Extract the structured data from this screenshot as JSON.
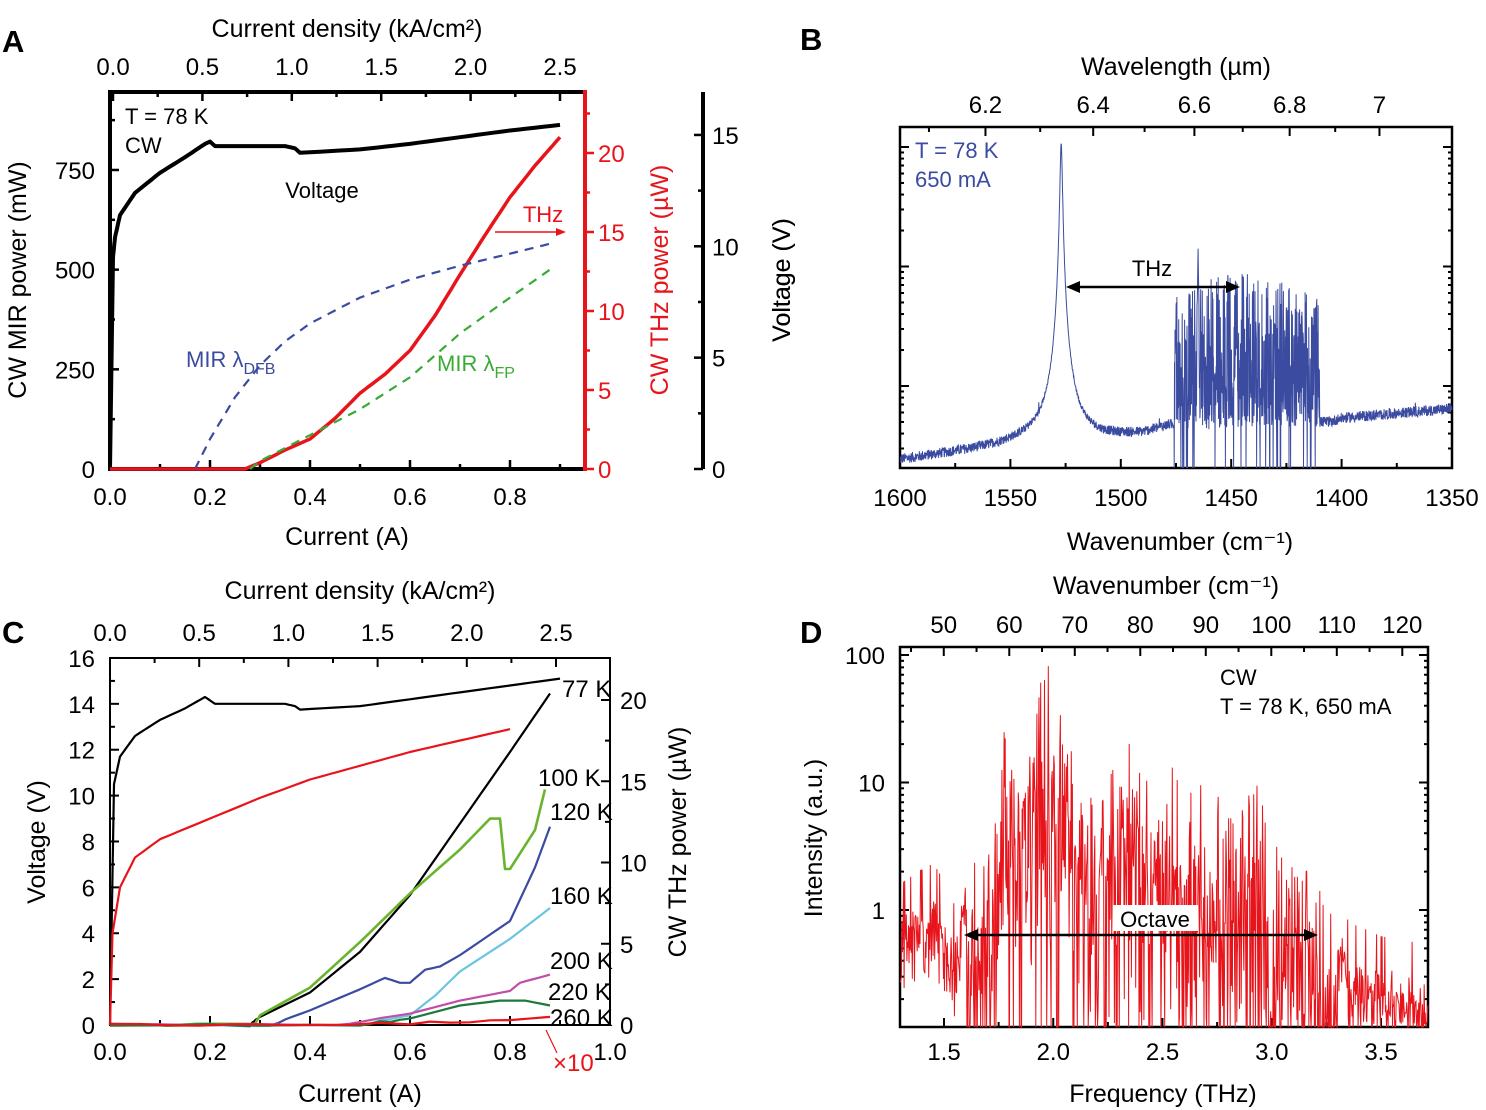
{
  "panel_labels": [
    "A",
    "B",
    "C",
    "D"
  ],
  "chart_data": [
    {
      "panel": "A",
      "type": "line",
      "xlabel": "Current (A)",
      "x2label": "Current density (kA/cm²)",
      "ylabel": "CW MIR power (mW)",
      "y2label": "CW THz power (µW)",
      "y3label": "Voltage (V)",
      "xticks": [
        "0.0",
        "0.2",
        "0.4",
        "0.6",
        "0.8"
      ],
      "x2ticks": [
        "0.0",
        "0.5",
        "1.0",
        "1.5",
        "2.0",
        "2.5"
      ],
      "yticks": [
        "0",
        "250",
        "500",
        "750"
      ],
      "y2ticks": [
        "0",
        "5",
        "10",
        "15",
        "20"
      ],
      "y3ticks": [
        "0",
        "5",
        "10",
        "15"
      ],
      "xlim": [
        0,
        0.95
      ],
      "ylim": [
        0,
        946
      ],
      "y2lim": [
        0,
        23.9
      ],
      "y3lim": [
        0,
        16.9
      ],
      "annotations": {
        "temp": "T = 78 K",
        "mode": "CW",
        "voltage": "Voltage",
        "thz": "THz",
        "mir_dfb": {
          "text": "MIR λ",
          "sub": "DFB"
        },
        "mir_fp": {
          "text": "MIR λ",
          "sub": "FP"
        }
      },
      "series": [
        {
          "name": "Voltage",
          "axis": "y3",
          "color": "#000000",
          "style": "solid",
          "x": [
            0,
            0.006,
            0.01,
            0.02,
            0.05,
            0.1,
            0.15,
            0.19,
            0.2,
            0.21,
            0.3,
            0.35,
            0.37,
            0.38,
            0.5,
            0.6,
            0.7,
            0.8,
            0.9
          ],
          "y": [
            0,
            9.5,
            10.4,
            11.4,
            12.4,
            13.3,
            14.0,
            14.6,
            14.7,
            14.5,
            14.5,
            14.5,
            14.4,
            14.2,
            14.35,
            14.6,
            14.9,
            15.2,
            15.45
          ]
        },
        {
          "name": "THz",
          "axis": "y2",
          "color": "#e8141b",
          "style": "solid",
          "x": [
            0,
            0.27,
            0.3,
            0.35,
            0.4,
            0.45,
            0.5,
            0.55,
            0.6,
            0.65,
            0.7,
            0.75,
            0.8,
            0.85,
            0.9
          ],
          "y": [
            0,
            0,
            0.4,
            1.2,
            1.9,
            3.2,
            4.8,
            6.0,
            7.5,
            9.7,
            12.3,
            14.8,
            17.2,
            19.2,
            21.0
          ]
        },
        {
          "name": "MIR λDFB",
          "axis": "y",
          "color": "#3b4ba0",
          "style": "dashed",
          "x": [
            0.17,
            0.2,
            0.25,
            0.3,
            0.35,
            0.4,
            0.5,
            0.6,
            0.7,
            0.8,
            0.88
          ],
          "y": [
            0,
            75,
            180,
            260,
            320,
            365,
            430,
            475,
            510,
            540,
            565
          ]
        },
        {
          "name": "MIR λFP",
          "axis": "y",
          "color": "#3aaa35",
          "style": "dashed",
          "x": [
            0.28,
            0.3,
            0.4,
            0.5,
            0.6,
            0.7,
            0.8,
            0.88
          ],
          "y": [
            0,
            20,
            85,
            150,
            230,
            340,
            430,
            500
          ]
        }
      ]
    },
    {
      "panel": "B",
      "type": "line",
      "xlabel": "Wavenumber (cm⁻¹)",
      "x2label": "Wavelength (µm)",
      "ylabel": "Voltage (V)",
      "xticks": [
        "1600",
        "1550",
        "1500",
        "1450",
        "1400",
        "1350"
      ],
      "x2ticks": [
        "6.2",
        "6.4",
        "6.6",
        "6.8",
        "7"
      ],
      "xlim": [
        1600,
        1350
      ],
      "yscale": "log",
      "annotations": {
        "temp": "T = 78 K",
        "current": "650 mA",
        "thz": "THz"
      },
      "color": "#3b4ba0",
      "envelope_log10": {
        "baseline_x": [
          1600,
          1560,
          1540,
          1510,
          1490,
          1478,
          1405,
          1400,
          1350
        ],
        "baseline_y": [
          -0.62,
          -0.52,
          -0.45,
          -0.44,
          -0.4,
          -0.33,
          -0.3,
          -0.27,
          -0.19
        ],
        "peaks": [
          {
            "x": 1527,
            "y": 2.03
          },
          {
            "x": 1465,
            "y": 1.15
          }
        ],
        "comb_range": [
          1410,
          1476
        ],
        "comb_top": 0.75
      }
    },
    {
      "panel": "C",
      "type": "line",
      "xlabel": "Current (A)",
      "x2label": "Current density (kA/cm²)",
      "ylabel": "Voltage (V)",
      "y2label": "CW THz power (µW)",
      "xticks": [
        "0.0",
        "0.2",
        "0.4",
        "0.6",
        "0.8",
        "1.0"
      ],
      "x2ticks": [
        "0.0",
        "0.5",
        "1.0",
        "1.5",
        "2.0",
        "2.5"
      ],
      "yticks": [
        "0",
        "2",
        "4",
        "6",
        "8",
        "10",
        "12",
        "14",
        "16"
      ],
      "y2ticks": [
        "0",
        "5",
        "10",
        "15",
        "20"
      ],
      "xlim": [
        0,
        1.0
      ],
      "ylim": [
        0,
        16
      ],
      "y2lim": [
        0,
        22.6
      ],
      "scale_note": "×10",
      "series": [
        {
          "kind": "voltage",
          "axis": "y",
          "color": "#000000",
          "x": [
            0,
            0.008,
            0.02,
            0.05,
            0.1,
            0.15,
            0.19,
            0.21,
            0.3,
            0.35,
            0.37,
            0.38,
            0.5,
            0.6,
            0.7,
            0.8,
            0.9
          ],
          "y": [
            0,
            10.5,
            11.7,
            12.6,
            13.3,
            13.8,
            14.3,
            14.0,
            14.0,
            14.0,
            13.9,
            13.75,
            13.9,
            14.2,
            14.5,
            14.8,
            15.1
          ]
        },
        {
          "kind": "voltage",
          "axis": "y",
          "color": "#e8141b",
          "x": [
            0,
            0.005,
            0.02,
            0.05,
            0.1,
            0.2,
            0.3,
            0.4,
            0.5,
            0.6,
            0.7,
            0.8
          ],
          "y": [
            0,
            4.0,
            6.0,
            7.3,
            8.1,
            9.0,
            9.9,
            10.7,
            11.3,
            11.9,
            12.4,
            12.9
          ]
        },
        {
          "name": "77 K",
          "axis": "y2",
          "color": "#000000",
          "x": [
            0,
            0.28,
            0.3,
            0.4,
            0.5,
            0.6,
            0.7,
            0.8,
            0.88
          ],
          "y": [
            0,
            0,
            0.5,
            2.0,
            4.5,
            8.0,
            12.4,
            16.8,
            20.4
          ]
        },
        {
          "name": "100 K",
          "axis": "y2",
          "color": "#6ab42d",
          "x": [
            0,
            0.29,
            0.3,
            0.4,
            0.5,
            0.6,
            0.7,
            0.76,
            0.78,
            0.79,
            0.8,
            0.85,
            0.87
          ],
          "y": [
            0,
            0,
            0.6,
            2.3,
            5.1,
            8.1,
            10.8,
            12.7,
            12.7,
            9.6,
            9.6,
            12.0,
            14.5
          ]
        },
        {
          "name": "120 K",
          "axis": "y2",
          "color": "#3b4ba0",
          "x": [
            0,
            0.32,
            0.4,
            0.5,
            0.55,
            0.58,
            0.6,
            0.63,
            0.66,
            0.7,
            0.8,
            0.85,
            0.88
          ],
          "y": [
            0,
            0,
            0.9,
            2.2,
            2.9,
            2.6,
            2.6,
            3.4,
            3.6,
            4.3,
            6.4,
            9.7,
            12.2
          ]
        },
        {
          "name": "160 K",
          "axis": "y2",
          "color": "#6cc5e0",
          "x": [
            0,
            0.5,
            0.6,
            0.65,
            0.7,
            0.8,
            0.88
          ],
          "y": [
            0,
            0,
            0.6,
            1.8,
            3.3,
            5.3,
            7.2
          ]
        },
        {
          "name": "200 K",
          "axis": "y2",
          "color": "#c04fa8",
          "x": [
            0,
            0.45,
            0.6,
            0.7,
            0.8,
            0.82,
            0.88
          ],
          "y": [
            0,
            0,
            0.7,
            1.5,
            2.1,
            2.6,
            3.1
          ]
        },
        {
          "name": "220 K",
          "axis": "y2",
          "color": "#1e7a3a",
          "x": [
            0,
            0.5,
            0.6,
            0.7,
            0.78,
            0.83,
            0.88
          ],
          "y": [
            0,
            0,
            0.4,
            1.2,
            1.5,
            1.5,
            1.2
          ]
        },
        {
          "name": "260 K",
          "axis": "y2",
          "color": "#e8141b",
          "x": [
            0,
            0.3,
            0.6,
            0.8,
            0.88
          ],
          "y": [
            0,
            0,
            0.1,
            0.3,
            0.5
          ]
        }
      ]
    },
    {
      "panel": "D",
      "type": "line",
      "xlabel": "Frequency (THz)",
      "x2label": "Wavenumber (cm⁻¹)",
      "ylabel": "Intensity (a.u.)",
      "xticks": [
        "1.5",
        "2.0",
        "2.5",
        "3.0",
        "3.5"
      ],
      "x2ticks": [
        "50",
        "60",
        "70",
        "80",
        "90",
        "100",
        "110",
        "120"
      ],
      "yticks": [
        "1",
        "10",
        "100"
      ],
      "xlim": [
        1.3,
        3.715
      ],
      "ylim": [
        0.12,
        115
      ],
      "yscale": "log",
      "annotations": {
        "mode": "CW",
        "condition": "T = 78 K, 650 mA",
        "octave": "Octave"
      },
      "color": "#e8141b",
      "envelope_peaks": {
        "x": [
          1.3,
          1.45,
          1.55,
          1.62,
          1.72,
          1.8,
          1.88,
          1.98,
          2.05,
          2.15,
          2.3,
          2.45,
          2.6,
          2.75,
          2.9,
          3.0,
          3.1,
          3.2,
          3.27,
          3.35,
          3.5,
          3.715
        ],
        "y": [
          0.9,
          1.3,
          0.6,
          2.2,
          8,
          45,
          25,
          100,
          40,
          14,
          28,
          20,
          16,
          12,
          14,
          4,
          8,
          2.5,
          1.2,
          0.45,
          0.35,
          0.3
        ]
      }
    }
  ]
}
